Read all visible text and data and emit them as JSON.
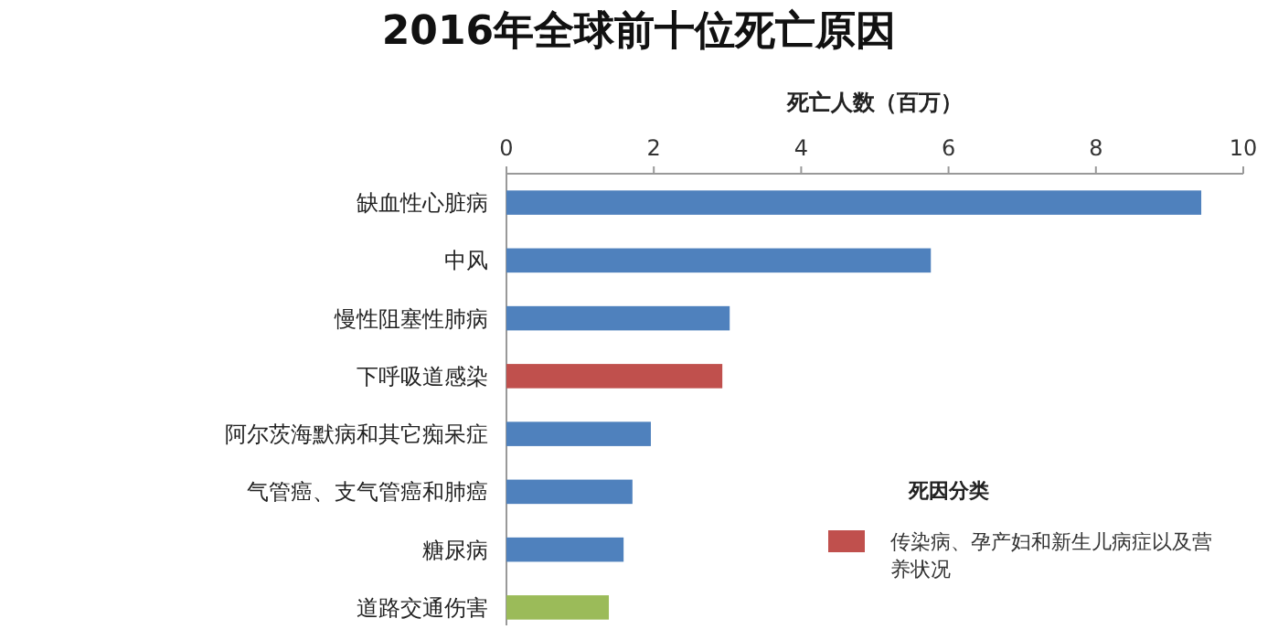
{
  "chart_data": {
    "type": "bar",
    "orientation": "horizontal",
    "stacked": true,
    "title": "2016年全球前十位死亡原因",
    "xlabel": "死亡人数（百万）",
    "legend_title": "死因分类",
    "legend": "bottom right",
    "categories": [
      "缺血性心脏病",
      "中风",
      "慢性阻塞性肺病",
      "下呼吸道感染",
      "阿尔茨海默病和其它痴呆症",
      "气管癌、支气管癌和肺癌",
      "糖尿病",
      "道路交通伤害"
    ],
    "xlim": [
      0,
      10
    ],
    "xticks": [
      0,
      2,
      4,
      6,
      8,
      10
    ],
    "grid": false,
    "series": [
      {
        "color": "#4f81bd",
        "values": [
          9.43,
          5.76,
          3.03,
          null,
          1.96,
          1.71,
          1.59,
          null
        ]
      },
      {
        "name": "传染病、孕产妇和新生儿病症以及营养状况",
        "color": "#c0504d",
        "values": [
          null,
          null,
          null,
          2.93,
          null,
          null,
          null,
          null
        ]
      },
      {
        "color": "#9bbb59",
        "values": [
          null,
          null,
          null,
          null,
          null,
          null,
          null,
          1.39
        ]
      }
    ]
  }
}
